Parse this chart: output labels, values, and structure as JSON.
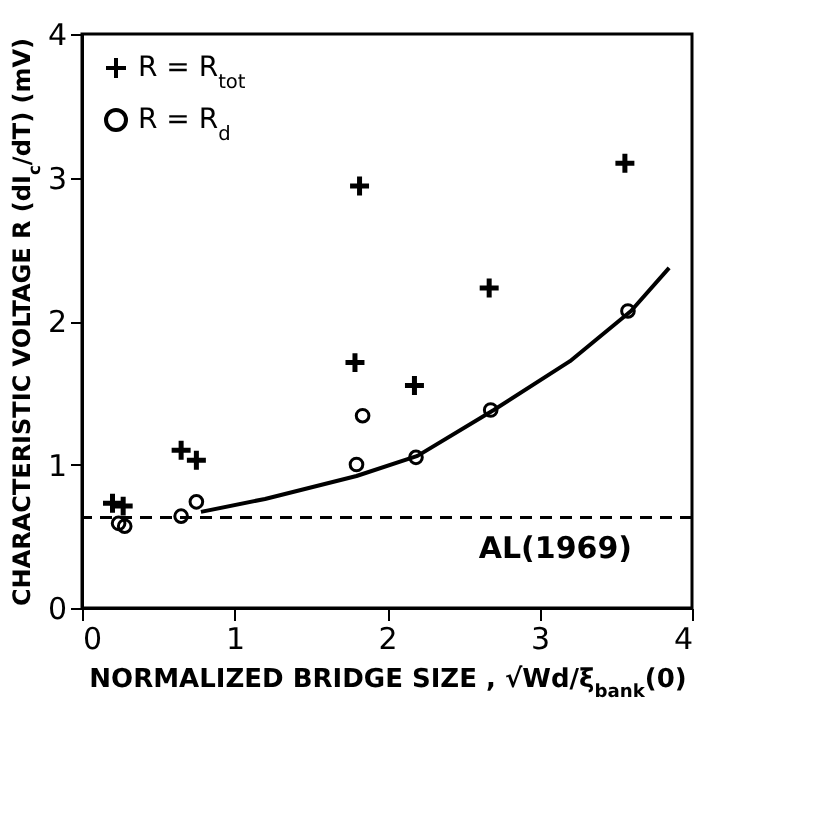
{
  "chart_data": {
    "type": "scatter",
    "xlabel": "NORMALIZED BRIDGE SIZE , √Wd/ξ$_{bank}$(0)",
    "ylabel": "CHARACTERISTIC VOLTAGE R (dI$_{c}$/dT) (mV)",
    "xlim": [
      0,
      4
    ],
    "ylim": [
      0,
      4
    ],
    "xticks": [
      0,
      1,
      2,
      3,
      4
    ],
    "yticks": [
      0,
      1,
      2,
      3,
      4
    ],
    "grid": false,
    "legend": "top left",
    "series": [
      {
        "name": "R = R$_{tot}$",
        "type": "scatter",
        "marker": "cross",
        "color": "#000000",
        "x": [
          0.2,
          0.27,
          0.65,
          0.75,
          1.79,
          1.82,
          2.18,
          2.67,
          3.56
        ],
        "values": [
          0.73,
          0.71,
          1.1,
          1.03,
          1.71,
          2.94,
          1.55,
          2.23,
          3.1
        ]
      },
      {
        "name": "R = R$_{d}$",
        "type": "scatter",
        "marker": "circle",
        "color": "#000000",
        "x": [
          0.24,
          0.28,
          0.65,
          0.75,
          1.8,
          1.84,
          2.19,
          2.68,
          3.58
        ],
        "values": [
          0.59,
          0.57,
          0.64,
          0.74,
          1.0,
          1.34,
          1.05,
          1.38,
          2.07
        ]
      },
      {
        "type": "line",
        "line_style": "solid",
        "color": "#000000",
        "x": [
          0.78,
          1.2,
          1.8,
          2.2,
          2.7,
          3.2,
          3.6,
          3.85
        ],
        "values": [
          0.67,
          0.76,
          0.92,
          1.06,
          1.38,
          1.72,
          2.07,
          2.37
        ]
      }
    ],
    "ref_lines": [
      {
        "axis": "y",
        "value": 0.63,
        "label": "AL(1969)",
        "line_style": "dashed",
        "color": "#000000"
      }
    ]
  }
}
